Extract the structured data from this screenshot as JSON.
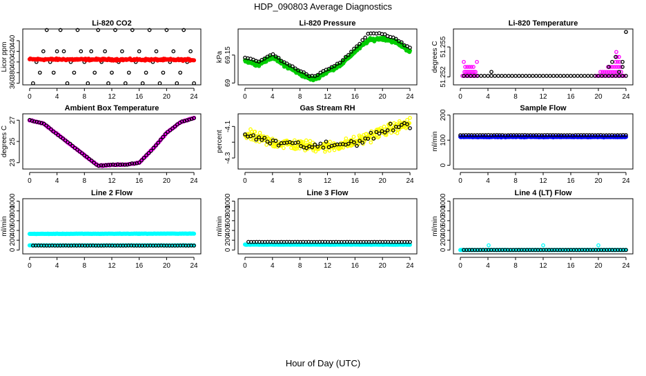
{
  "title": "HDP_090803  Average Diagnostics",
  "xlabel": "Hour of Day (UTC)",
  "x_ticks": [
    0,
    4,
    8,
    12,
    16,
    20,
    24
  ],
  "colors": {
    "black": "#000000",
    "red": "#ff0000",
    "green": "#00cc00",
    "magenta": "#ff00ff",
    "yellow": "#ffff00",
    "blue": "#0000ff",
    "cyan": "#00ffff"
  },
  "chart_data": [
    {
      "type": "scatter",
      "title": "Li-820 CO2",
      "ylabel": "Licor ppm",
      "yticks": [
        360,
        380,
        400,
        420,
        440
      ],
      "ylim": [
        357,
        462
      ],
      "series": [
        {
          "name": "black",
          "color": "#000000",
          "marker": "open",
          "x": [
            0.5,
            1.0,
            1.5,
            2.0,
            2.5,
            3.0,
            3.5,
            4.0,
            4.5,
            5.0,
            5.5,
            6.0,
            6.5,
            7.0,
            7.5,
            8.0,
            8.5,
            9.0,
            9.5,
            10.0,
            10.5,
            11.0,
            11.5,
            12.0,
            12.5,
            13.0,
            13.5,
            14.0,
            14.5,
            15.0,
            15.5,
            16.0,
            16.5,
            17.0,
            17.5,
            18.0,
            18.5,
            19.0,
            19.5,
            20.0,
            20.5,
            21.0,
            21.5,
            22.0,
            22.5,
            23.0,
            23.5,
            24.0
          ],
          "y": [
            360,
            400,
            380,
            420,
            460,
            400,
            380,
            420,
            460,
            420,
            360,
            400,
            380,
            460,
            420,
            400,
            360,
            420,
            380,
            460,
            400,
            420,
            360,
            380,
            460,
            400,
            420,
            360,
            380,
            460,
            400,
            420,
            360,
            380,
            460,
            400,
            420,
            360,
            380,
            460,
            400,
            420,
            360,
            380,
            460,
            400,
            420,
            360
          ]
        },
        {
          "name": "red",
          "color": "#ff0000",
          "marker": "filled",
          "x_range": [
            0,
            24
          ],
          "y_start": 405,
          "y_end": 404,
          "noise": 2.5,
          "n": 240
        }
      ]
    },
    {
      "type": "scatter",
      "title": "Li-820 Pressure",
      "ylabel": "kPa",
      "yticks": [
        69.0,
        69.15
      ],
      "ylim": [
        68.99,
        69.29
      ],
      "series": [
        {
          "name": "green",
          "color": "#00cc00",
          "marker": "filled",
          "x": [
            0,
            2,
            4,
            6,
            8,
            9,
            10,
            11,
            12,
            14,
            16,
            18,
            20,
            22,
            24
          ],
          "y": [
            69.12,
            69.1,
            69.14,
            69.09,
            69.05,
            69.03,
            69.02,
            69.04,
            69.06,
            69.1,
            69.17,
            69.23,
            69.24,
            69.22,
            69.17
          ],
          "noise": 0.012,
          "n": 320
        },
        {
          "name": "black",
          "color": "#000000",
          "marker": "open",
          "x": [
            0,
            2,
            4,
            6,
            8,
            9,
            10,
            11,
            12,
            14,
            16,
            18,
            20,
            22,
            24
          ],
          "y": [
            69.135,
            69.115,
            69.155,
            69.105,
            69.065,
            69.045,
            69.035,
            69.055,
            69.075,
            69.115,
            69.185,
            69.265,
            69.265,
            69.235,
            69.185
          ],
          "noise": 0.006,
          "n": 60
        }
      ]
    },
    {
      "type": "scatter",
      "title": "Li-820 Temperature",
      "ylabel": "degrees C",
      "yticks": [
        51.252,
        51.255
      ],
      "ytick_labels": [
        "51.252",
        "51.255"
      ],
      "ylim": [
        51.2512,
        51.2568
      ],
      "series": [
        {
          "name": "magenta",
          "color": "#ff00ff",
          "marker": "open",
          "x": [
            0.3,
            0.5,
            0.7,
            0.9,
            1.1,
            1.3,
            1.5,
            1.7,
            1.9,
            2.1,
            2.3,
            2.5,
            0.6,
            0.8,
            1.0,
            1.2,
            1.4,
            1.6,
            1.8,
            2.0,
            2.2,
            0.7,
            1.0,
            1.3,
            1.6,
            1.9,
            0.5,
            2.4,
            19.5,
            19.8,
            20.1,
            20.4,
            20.7,
            21.0,
            21.3,
            21.6,
            21.9,
            22.2,
            22.5,
            22.8,
            23.1,
            23.4,
            23.7,
            20.3,
            20.6,
            20.9,
            21.2,
            21.5,
            21.8,
            22.1,
            22.4,
            22.7,
            23.0,
            23.3,
            21.4,
            21.7,
            22.0,
            22.3,
            22.6,
            22.9,
            23.2,
            22.5,
            22.8,
            23.1,
            22.7,
            23.0,
            22.6
          ],
          "y": [
            51.2521,
            51.2521,
            51.2521,
            51.2521,
            51.2521,
            51.2521,
            51.2521,
            51.2521,
            51.2521,
            51.2521,
            51.2521,
            51.2521,
            51.2525,
            51.2525,
            51.2525,
            51.2525,
            51.2525,
            51.2525,
            51.2525,
            51.2525,
            51.2525,
            51.253,
            51.253,
            51.253,
            51.253,
            51.253,
            51.2535,
            51.2535,
            51.2521,
            51.2521,
            51.2521,
            51.2521,
            51.2521,
            51.2521,
            51.2521,
            51.2521,
            51.2521,
            51.2521,
            51.2521,
            51.2521,
            51.2521,
            51.2521,
            51.2521,
            51.2525,
            51.2525,
            51.2525,
            51.2525,
            51.2525,
            51.2525,
            51.2525,
            51.2525,
            51.2525,
            51.2525,
            51.2525,
            51.253,
            51.253,
            51.253,
            51.253,
            51.253,
            51.253,
            51.253,
            51.2535,
            51.2535,
            51.2535,
            51.254,
            51.254,
            51.2545
          ]
        },
        {
          "name": "black",
          "color": "#000000",
          "marker": "open",
          "x": [
            0.5,
            1.0,
            1.5,
            2.0,
            2.5,
            3.0,
            3.5,
            4.0,
            4.5,
            5.0,
            5.5,
            6.0,
            6.5,
            7.0,
            7.5,
            8.0,
            8.5,
            9.0,
            9.5,
            10.0,
            10.5,
            11.0,
            11.5,
            12.0,
            12.5,
            13.0,
            13.5,
            14.0,
            14.5,
            15.0,
            15.5,
            16.0,
            16.5,
            17.0,
            17.5,
            18.0,
            18.5,
            19.0,
            19.5,
            20.0,
            20.5,
            21.0,
            21.5,
            22.0,
            22.5,
            23.0,
            23.5,
            24.0,
            4.5,
            21.5,
            22.0,
            23.0,
            23.5,
            22.5,
            23.5,
            24.0
          ],
          "y": [
            51.2521,
            51.2521,
            51.2521,
            51.2521,
            51.2521,
            51.2521,
            51.2521,
            51.2521,
            51.2521,
            51.2521,
            51.2521,
            51.2521,
            51.2521,
            51.2521,
            51.2521,
            51.2521,
            51.2521,
            51.2521,
            51.2521,
            51.2521,
            51.2521,
            51.2521,
            51.2521,
            51.2521,
            51.2521,
            51.2521,
            51.2521,
            51.2521,
            51.2521,
            51.2521,
            51.2521,
            51.2521,
            51.2521,
            51.2521,
            51.2521,
            51.2521,
            51.2521,
            51.2521,
            51.2521,
            51.2521,
            51.2521,
            51.2521,
            51.2521,
            51.2521,
            51.2521,
            51.2521,
            51.2521,
            51.2521,
            51.2525,
            51.253,
            51.2535,
            51.2525,
            51.253,
            51.254,
            51.2535,
            51.2565
          ]
        }
      ]
    },
    {
      "type": "scatter",
      "title": "Ambient Box Temperature",
      "ylabel": "degrees C",
      "yticks": [
        23,
        25,
        27
      ],
      "ylim": [
        22.4,
        27.6
      ],
      "series": [
        {
          "name": "magenta",
          "color": "#ff00ff",
          "marker": "filled",
          "x": [
            0,
            2,
            4,
            6,
            8,
            10,
            12,
            14,
            16,
            18,
            20,
            22,
            24
          ],
          "y": [
            27.0,
            26.7,
            25.7,
            24.7,
            23.7,
            22.7,
            22.8,
            22.8,
            23.0,
            24.3,
            25.8,
            26.8,
            27.2
          ],
          "noise": 0.06,
          "n": 200
        },
        {
          "name": "black",
          "color": "#000000",
          "marker": "open",
          "x": [
            0,
            2,
            4,
            6,
            8,
            10,
            12,
            14,
            16,
            18,
            20,
            22,
            24
          ],
          "y": [
            27.0,
            26.7,
            25.7,
            24.7,
            23.7,
            22.7,
            22.8,
            22.8,
            23.0,
            24.3,
            25.8,
            26.8,
            27.2
          ],
          "noise": 0.05,
          "n": 70
        }
      ]
    },
    {
      "type": "scatter",
      "title": "Gas Stream RH",
      "ylabel": "percent",
      "yticks": [
        -4.3,
        -4.2,
        -4.1
      ],
      "ytick_labels": [
        "-4.3",
        "",
        "-4.1"
      ],
      "ylim": [
        -4.37,
        -4.02
      ],
      "series": [
        {
          "name": "yellow",
          "color": "#ffff00",
          "marker": "open",
          "x": [
            0,
            4,
            8,
            12,
            16,
            20,
            24
          ],
          "y": [
            -4.15,
            -4.2,
            -4.22,
            -4.23,
            -4.2,
            -4.13,
            -4.08
          ],
          "noise": 0.05,
          "n": 300
        },
        {
          "name": "black",
          "color": "#000000",
          "marker": "open",
          "x": [
            0,
            4,
            8,
            12,
            16,
            20,
            24
          ],
          "y": [
            -4.15,
            -4.2,
            -4.22,
            -4.23,
            -4.2,
            -4.13,
            -4.08
          ],
          "noise": 0.04,
          "n": 60
        }
      ]
    },
    {
      "type": "scatter",
      "title": "Sample Flow",
      "ylabel": "ml/min",
      "yticks": [
        0,
        100,
        200
      ],
      "ylim": [
        -15,
        205
      ],
      "series": [
        {
          "name": "blue",
          "color": "#0000ff",
          "marker": "filled",
          "x_range": [
            0,
            24
          ],
          "y_start": 113,
          "y_end": 113,
          "noise": 2,
          "n": 240
        },
        {
          "name": "black",
          "color": "#000000",
          "marker": "open",
          "x_range": [
            0,
            24
          ],
          "y_start": 120,
          "y_end": 120,
          "noise": 1,
          "n": 60
        }
      ]
    },
    {
      "type": "scatter",
      "title": "Line 2 Flow",
      "ylabel": "ml/min",
      "yticks": [
        0,
        200,
        400,
        600,
        800,
        1000
      ],
      "ylim": [
        -80,
        1050
      ],
      "series": [
        {
          "name": "cyan",
          "color": "#00ffff",
          "marker": "filled",
          "x_range": [
            0,
            24
          ],
          "y_start": 330,
          "y_end": 335,
          "noise": 5,
          "n": 240
        },
        {
          "name": "cyan-low",
          "color": "#00ffff",
          "marker": "filled",
          "x_range": [
            0,
            24
          ],
          "y_start": 95,
          "y_end": 95,
          "noise": 2,
          "n": 120
        },
        {
          "name": "black",
          "color": "#000000",
          "marker": "open",
          "x_range": [
            0.5,
            24
          ],
          "y_start": 90,
          "y_end": 90,
          "noise": 1,
          "n": 60
        }
      ]
    },
    {
      "type": "scatter",
      "title": "Line 3 Flow",
      "ylabel": "ml/min",
      "yticks": [
        0,
        200,
        400,
        600,
        800,
        1000
      ],
      "ylim": [
        -80,
        1050
      ],
      "series": [
        {
          "name": "cyan",
          "color": "#00ffff",
          "marker": "filled",
          "x_range": [
            0,
            24
          ],
          "y_start": 110,
          "y_end": 110,
          "noise": 5,
          "n": 240
        },
        {
          "name": "black",
          "color": "#000000",
          "marker": "open",
          "x_range": [
            0.5,
            24
          ],
          "y_start": 165,
          "y_end": 165,
          "noise": 1,
          "n": 60
        }
      ]
    },
    {
      "type": "scatter",
      "title": "Line 4 (LT) Flow",
      "ylabel": "ml/min",
      "yticks": [
        0,
        200,
        400,
        600,
        800,
        1000
      ],
      "ylim": [
        -80,
        1050
      ],
      "series": [
        {
          "name": "cyan",
          "color": "#00ffff",
          "marker": "filled",
          "x_range": [
            0,
            24
          ],
          "y_start": 0,
          "y_end": 0,
          "noise": 2,
          "n": 200
        },
        {
          "name": "cyan-spikes",
          "color": "#00ffff",
          "marker": "open",
          "x": [
            4.1,
            12.0,
            20.0
          ],
          "y": [
            95,
            95,
            95
          ]
        },
        {
          "name": "black",
          "color": "#000000",
          "marker": "open",
          "x_range": [
            0.5,
            24
          ],
          "y_start": 0,
          "y_end": 0,
          "noise": 1,
          "n": 60
        }
      ]
    }
  ]
}
